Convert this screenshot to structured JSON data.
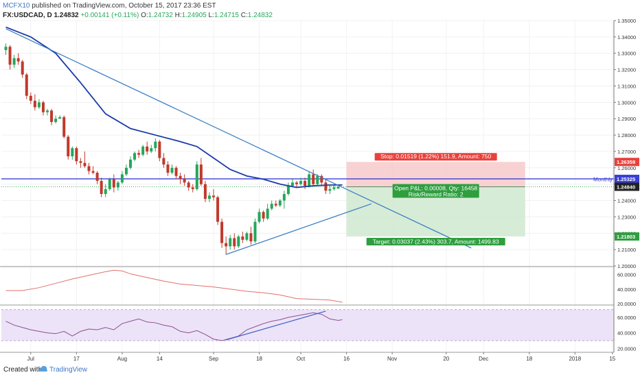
{
  "header": {
    "author": "MCFX10",
    "published": "published on TradingView.com, October 15, 2017 23:36 EST",
    "symbol": "FX:USDCAD, D",
    "price": "1.24832",
    "change": "+0.00141 (+0.11%)",
    "o_label": "O:",
    "o_value": "1.24732",
    "h_label": "H:",
    "h_value": "1.24905",
    "l_label": "L:",
    "l_value": "1.24715",
    "c_label": "C:",
    "c_value": "1.24832"
  },
  "footer": {
    "created_with": "Created with",
    "brand": "TradingView"
  },
  "colors": {
    "bull": "#26a65b",
    "bear": "#c0392b",
    "ema": "#1a3aa8",
    "trendline": "#3d7fc4",
    "monthly": "#3a3fd6",
    "stop_zone": "#f6c7c7",
    "target_zone": "#cfe9cf",
    "rsi": "#8e4d8e",
    "atr": "#e0706a",
    "rsi_band": "#ece3f8"
  },
  "chart_data": {
    "type": "candlestick",
    "symbol": "FX:USDCAD",
    "timeframe": "D",
    "ylim": [
      1.2,
      1.35
    ],
    "yticks": [
      "1.35000",
      "1.34000",
      "1.33000",
      "1.32000",
      "1.31000",
      "1.30000",
      "1.29000",
      "1.28000",
      "1.27000",
      "1.26000",
      "1.25000",
      "1.24000",
      "1.23000",
      "1.22000",
      "1.21000",
      "1.20000"
    ],
    "xticks": [
      {
        "label": "Jul",
        "bar": 6
      },
      {
        "label": "17",
        "bar": 17
      },
      {
        "label": "Aug",
        "bar": 28
      },
      {
        "label": "14",
        "bar": 37
      },
      {
        "label": "Sep",
        "bar": 50
      },
      {
        "label": "18",
        "bar": 61
      },
      {
        "label": "Oct",
        "bar": 71
      },
      {
        "label": "16",
        "bar": 82
      },
      {
        "label": "Nov",
        "bar": 93
      },
      {
        "label": "20",
        "bar": 106
      },
      {
        "label": "Dec",
        "bar": 115
      },
      {
        "label": "18",
        "bar": 126
      },
      {
        "label": "2018",
        "bar": 137
      },
      {
        "label": "15",
        "bar": 146
      }
    ],
    "candles": [
      {
        "o": 1.332,
        "h": 1.336,
        "l": 1.329,
        "c": 1.334
      },
      {
        "o": 1.334,
        "h": 1.335,
        "l": 1.32,
        "c": 1.323
      },
      {
        "o": 1.323,
        "h": 1.329,
        "l": 1.321,
        "c": 1.327
      },
      {
        "o": 1.327,
        "h": 1.33,
        "l": 1.323,
        "c": 1.325
      },
      {
        "o": 1.325,
        "h": 1.326,
        "l": 1.315,
        "c": 1.317
      },
      {
        "o": 1.317,
        "h": 1.318,
        "l": 1.302,
        "c": 1.304
      },
      {
        "o": 1.304,
        "h": 1.306,
        "l": 1.299,
        "c": 1.301
      },
      {
        "o": 1.301,
        "h": 1.305,
        "l": 1.295,
        "c": 1.297
      },
      {
        "o": 1.297,
        "h": 1.302,
        "l": 1.296,
        "c": 1.3
      },
      {
        "o": 1.3,
        "h": 1.301,
        "l": 1.292,
        "c": 1.294
      },
      {
        "o": 1.294,
        "h": 1.296,
        "l": 1.292,
        "c": 1.295
      },
      {
        "o": 1.295,
        "h": 1.296,
        "l": 1.286,
        "c": 1.288
      },
      {
        "o": 1.288,
        "h": 1.292,
        "l": 1.287,
        "c": 1.29
      },
      {
        "o": 1.29,
        "h": 1.292,
        "l": 1.291,
        "c": 1.291
      },
      {
        "o": 1.291,
        "h": 1.292,
        "l": 1.278,
        "c": 1.279
      },
      {
        "o": 1.279,
        "h": 1.28,
        "l": 1.265,
        "c": 1.267
      },
      {
        "o": 1.267,
        "h": 1.273,
        "l": 1.265,
        "c": 1.272
      },
      {
        "o": 1.272,
        "h": 1.273,
        "l": 1.262,
        "c": 1.264
      },
      {
        "o": 1.264,
        "h": 1.266,
        "l": 1.26,
        "c": 1.263
      },
      {
        "o": 1.263,
        "h": 1.27,
        "l": 1.26,
        "c": 1.261
      },
      {
        "o": 1.261,
        "h": 1.263,
        "l": 1.256,
        "c": 1.258
      },
      {
        "o": 1.258,
        "h": 1.261,
        "l": 1.256,
        "c": 1.257
      },
      {
        "o": 1.257,
        "h": 1.258,
        "l": 1.25,
        "c": 1.252
      },
      {
        "o": 1.252,
        "h": 1.254,
        "l": 1.242,
        "c": 1.244
      },
      {
        "o": 1.244,
        "h": 1.25,
        "l": 1.242,
        "c": 1.247
      },
      {
        "o": 1.247,
        "h": 1.254,
        "l": 1.246,
        "c": 1.253
      },
      {
        "o": 1.253,
        "h": 1.256,
        "l": 1.245,
        "c": 1.248
      },
      {
        "o": 1.248,
        "h": 1.252,
        "l": 1.246,
        "c": 1.251
      },
      {
        "o": 1.251,
        "h": 1.258,
        "l": 1.25,
        "c": 1.256
      },
      {
        "o": 1.256,
        "h": 1.262,
        "l": 1.255,
        "c": 1.26
      },
      {
        "o": 1.26,
        "h": 1.267,
        "l": 1.259,
        "c": 1.265
      },
      {
        "o": 1.265,
        "h": 1.27,
        "l": 1.264,
        "c": 1.269
      },
      {
        "o": 1.269,
        "h": 1.271,
        "l": 1.266,
        "c": 1.268
      },
      {
        "o": 1.268,
        "h": 1.274,
        "l": 1.267,
        "c": 1.273
      },
      {
        "o": 1.273,
        "h": 1.276,
        "l": 1.268,
        "c": 1.27
      },
      {
        "o": 1.27,
        "h": 1.274,
        "l": 1.269,
        "c": 1.272
      },
      {
        "o": 1.272,
        "h": 1.278,
        "l": 1.27,
        "c": 1.276
      },
      {
        "o": 1.276,
        "h": 1.277,
        "l": 1.264,
        "c": 1.266
      },
      {
        "o": 1.266,
        "h": 1.269,
        "l": 1.26,
        "c": 1.262
      },
      {
        "o": 1.262,
        "h": 1.264,
        "l": 1.255,
        "c": 1.257
      },
      {
        "o": 1.257,
        "h": 1.262,
        "l": 1.256,
        "c": 1.26
      },
      {
        "o": 1.26,
        "h": 1.261,
        "l": 1.253,
        "c": 1.255
      },
      {
        "o": 1.255,
        "h": 1.257,
        "l": 1.25,
        "c": 1.253
      },
      {
        "o": 1.253,
        "h": 1.256,
        "l": 1.249,
        "c": 1.251
      },
      {
        "o": 1.251,
        "h": 1.252,
        "l": 1.246,
        "c": 1.248
      },
      {
        "o": 1.248,
        "h": 1.25,
        "l": 1.245,
        "c": 1.247
      },
      {
        "o": 1.247,
        "h": 1.264,
        "l": 1.246,
        "c": 1.262
      },
      {
        "o": 1.262,
        "h": 1.266,
        "l": 1.249,
        "c": 1.25
      },
      {
        "o": 1.25,
        "h": 1.252,
        "l": 1.239,
        "c": 1.241
      },
      {
        "o": 1.241,
        "h": 1.245,
        "l": 1.239,
        "c": 1.243
      },
      {
        "o": 1.243,
        "h": 1.247,
        "l": 1.24,
        "c": 1.242
      },
      {
        "o": 1.242,
        "h": 1.243,
        "l": 1.225,
        "c": 1.227
      },
      {
        "o": 1.227,
        "h": 1.229,
        "l": 1.211,
        "c": 1.214
      },
      {
        "o": 1.214,
        "h": 1.218,
        "l": 1.207,
        "c": 1.212
      },
      {
        "o": 1.212,
        "h": 1.219,
        "l": 1.21,
        "c": 1.217
      },
      {
        "o": 1.217,
        "h": 1.22,
        "l": 1.21,
        "c": 1.212
      },
      {
        "o": 1.212,
        "h": 1.219,
        "l": 1.211,
        "c": 1.218
      },
      {
        "o": 1.218,
        "h": 1.221,
        "l": 1.214,
        "c": 1.216
      },
      {
        "o": 1.216,
        "h": 1.221,
        "l": 1.215,
        "c": 1.22
      },
      {
        "o": 1.22,
        "h": 1.224,
        "l": 1.213,
        "c": 1.215
      },
      {
        "o": 1.215,
        "h": 1.229,
        "l": 1.214,
        "c": 1.227
      },
      {
        "o": 1.227,
        "h": 1.235,
        "l": 1.226,
        "c": 1.233
      },
      {
        "o": 1.233,
        "h": 1.234,
        "l": 1.227,
        "c": 1.229
      },
      {
        "o": 1.229,
        "h": 1.238,
        "l": 1.228,
        "c": 1.235
      },
      {
        "o": 1.235,
        "h": 1.24,
        "l": 1.234,
        "c": 1.238
      },
      {
        "o": 1.238,
        "h": 1.24,
        "l": 1.236,
        "c": 1.237
      },
      {
        "o": 1.237,
        "h": 1.241,
        "l": 1.236,
        "c": 1.24
      },
      {
        "o": 1.24,
        "h": 1.246,
        "l": 1.235,
        "c": 1.244
      },
      {
        "o": 1.244,
        "h": 1.251,
        "l": 1.243,
        "c": 1.249
      },
      {
        "o": 1.249,
        "h": 1.253,
        "l": 1.248,
        "c": 1.251
      },
      {
        "o": 1.251,
        "h": 1.252,
        "l": 1.248,
        "c": 1.25
      },
      {
        "o": 1.25,
        "h": 1.254,
        "l": 1.249,
        "c": 1.252
      },
      {
        "o": 1.252,
        "h": 1.254,
        "l": 1.247,
        "c": 1.249
      },
      {
        "o": 1.249,
        "h": 1.258,
        "l": 1.248,
        "c": 1.256
      },
      {
        "o": 1.256,
        "h": 1.259,
        "l": 1.249,
        "c": 1.25
      },
      {
        "o": 1.25,
        "h": 1.256,
        "l": 1.249,
        "c": 1.255
      },
      {
        "o": 1.255,
        "h": 1.256,
        "l": 1.249,
        "c": 1.251
      },
      {
        "o": 1.251,
        "h": 1.253,
        "l": 1.244,
        "c": 1.246
      },
      {
        "o": 1.246,
        "h": 1.249,
        "l": 1.244,
        "c": 1.247
      },
      {
        "o": 1.247,
        "h": 1.25,
        "l": 1.246,
        "c": 1.248
      },
      {
        "o": 1.24732,
        "h": 1.24905,
        "l": 1.24715,
        "c": 1.24832
      }
    ],
    "ema": [
      {
        "bar": 0,
        "v": 1.346
      },
      {
        "bar": 6,
        "v": 1.34
      },
      {
        "bar": 12,
        "v": 1.33
      },
      {
        "bar": 18,
        "v": 1.312
      },
      {
        "bar": 24,
        "v": 1.293
      },
      {
        "bar": 30,
        "v": 1.284
      },
      {
        "bar": 36,
        "v": 1.28
      },
      {
        "bar": 42,
        "v": 1.276
      },
      {
        "bar": 46,
        "v": 1.273
      },
      {
        "bar": 50,
        "v": 1.266
      },
      {
        "bar": 54,
        "v": 1.259
      },
      {
        "bar": 58,
        "v": 1.255
      },
      {
        "bar": 62,
        "v": 1.253
      },
      {
        "bar": 66,
        "v": 1.25
      },
      {
        "bar": 70,
        "v": 1.248
      },
      {
        "bar": 74,
        "v": 1.249
      },
      {
        "bar": 78,
        "v": 1.2495
      },
      {
        "bar": 81,
        "v": 1.2495
      }
    ],
    "trendlines": [
      {
        "p1": {
          "bar": 0,
          "v": 1.345
        },
        "p2": {
          "bar": 112,
          "v": 1.211
        }
      },
      {
        "p1": {
          "bar": 53,
          "v": 1.207
        },
        "p2": {
          "bar": 88,
          "v": 1.238
        }
      }
    ],
    "monthly_level": {
      "label": "Monthly",
      "value": 1.25325
    },
    "current_price": 1.2484,
    "position": {
      "entry": 1.2484,
      "stop": 1.26359,
      "target": 1.21803,
      "bar_start": 82,
      "bar_end": 125,
      "stop_label": "Stop: 0.01519 (1.22%) 151.9, Amount: 750",
      "open_label": "Open P&L: 0.00008, Qty: 16458",
      "rr_label": "Risk/Reward Ratio: 2",
      "target_label": "Target: 0.03037 (2.43%) 303.7, Amount: 1499.83"
    },
    "price_tags": [
      "1.26359",
      "1.25325",
      "1.24840",
      "1.21803"
    ],
    "atr_panel": {
      "ylim": [
        20,
        70
      ],
      "yticks": [
        "60.0000",
        "40.0000",
        "20.0000"
      ],
      "series": [
        {
          "bar": 0,
          "v": 38
        },
        {
          "bar": 4,
          "v": 38
        },
        {
          "bar": 8,
          "v": 42
        },
        {
          "bar": 12,
          "v": 48
        },
        {
          "bar": 16,
          "v": 54
        },
        {
          "bar": 20,
          "v": 59
        },
        {
          "bar": 24,
          "v": 64
        },
        {
          "bar": 26,
          "v": 66
        },
        {
          "bar": 28,
          "v": 65
        },
        {
          "bar": 30,
          "v": 61
        },
        {
          "bar": 34,
          "v": 56
        },
        {
          "bar": 38,
          "v": 51
        },
        {
          "bar": 42,
          "v": 47
        },
        {
          "bar": 46,
          "v": 45
        },
        {
          "bar": 50,
          "v": 43
        },
        {
          "bar": 54,
          "v": 40
        },
        {
          "bar": 58,
          "v": 37
        },
        {
          "bar": 62,
          "v": 35
        },
        {
          "bar": 66,
          "v": 32
        },
        {
          "bar": 70,
          "v": 27
        },
        {
          "bar": 74,
          "v": 26
        },
        {
          "bar": 78,
          "v": 25
        },
        {
          "bar": 81,
          "v": 22
        }
      ]
    },
    "rsi_panel": {
      "ylim": [
        15,
        75
      ],
      "band": [
        30,
        70
      ],
      "yticks": [
        "60.0000",
        "40.0000",
        "20.0000"
      ],
      "series": [
        {
          "bar": 0,
          "v": 55
        },
        {
          "bar": 2,
          "v": 50
        },
        {
          "bar": 4,
          "v": 47
        },
        {
          "bar": 6,
          "v": 44
        },
        {
          "bar": 8,
          "v": 42
        },
        {
          "bar": 10,
          "v": 40
        },
        {
          "bar": 12,
          "v": 39
        },
        {
          "bar": 14,
          "v": 42
        },
        {
          "bar": 16,
          "v": 36
        },
        {
          "bar": 18,
          "v": 42
        },
        {
          "bar": 20,
          "v": 45
        },
        {
          "bar": 22,
          "v": 44
        },
        {
          "bar": 24,
          "v": 47
        },
        {
          "bar": 26,
          "v": 44
        },
        {
          "bar": 28,
          "v": 52
        },
        {
          "bar": 30,
          "v": 55
        },
        {
          "bar": 32,
          "v": 58
        },
        {
          "bar": 34,
          "v": 54
        },
        {
          "bar": 36,
          "v": 53
        },
        {
          "bar": 38,
          "v": 50
        },
        {
          "bar": 40,
          "v": 48
        },
        {
          "bar": 42,
          "v": 42
        },
        {
          "bar": 44,
          "v": 40
        },
        {
          "bar": 46,
          "v": 43
        },
        {
          "bar": 48,
          "v": 38
        },
        {
          "bar": 50,
          "v": 32
        },
        {
          "bar": 52,
          "v": 30
        },
        {
          "bar": 54,
          "v": 33
        },
        {
          "bar": 56,
          "v": 36
        },
        {
          "bar": 58,
          "v": 44
        },
        {
          "bar": 60,
          "v": 48
        },
        {
          "bar": 62,
          "v": 52
        },
        {
          "bar": 64,
          "v": 55
        },
        {
          "bar": 66,
          "v": 57
        },
        {
          "bar": 68,
          "v": 60
        },
        {
          "bar": 70,
          "v": 62
        },
        {
          "bar": 72,
          "v": 64
        },
        {
          "bar": 74,
          "v": 66
        },
        {
          "bar": 76,
          "v": 64
        },
        {
          "bar": 78,
          "v": 58
        },
        {
          "bar": 80,
          "v": 56
        },
        {
          "bar": 81,
          "v": 57
        }
      ],
      "trendline": {
        "p1": {
          "bar": 53,
          "v": 31
        },
        "p2": {
          "bar": 77,
          "v": 68
        }
      }
    }
  }
}
